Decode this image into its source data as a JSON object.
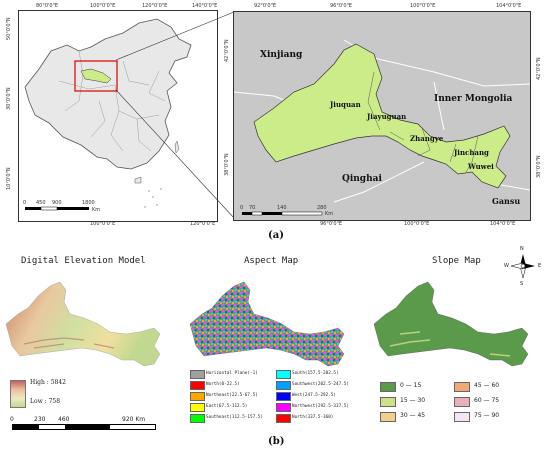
{
  "top_left": {
    "lon_ticks_top": [
      "80°0'0\"E",
      "100°0'0\"E",
      "120°0'0\"E",
      "140°0'0\"E"
    ],
    "lon_ticks_bottom": [
      "100°0'0\"E",
      "120°0'0\"E"
    ],
    "lat_ticks": [
      "50°0'0\"N",
      "30°0'0\"N",
      "10°0'0\"N"
    ],
    "scale": {
      "values": [
        "0",
        "450",
        "900",
        "1800"
      ],
      "unit": "Km"
    }
  },
  "top_right": {
    "lon_ticks_top": [
      "92°0'0\"E",
      "96°0'0\"E",
      "100°0'0\"E",
      "104°0'0\"E"
    ],
    "lon_ticks_bottom": [
      "96°0'0\"E",
      "100°0'0\"E",
      "104°0'0\"E"
    ],
    "lat_ticks_left": [
      "42°0'0\"N",
      "38°0'0\"N"
    ],
    "lat_ticks_right": [
      "42°0'0\"N",
      "38°0'0\"N"
    ],
    "regions": [
      "Xinjiang",
      "Inner Mongolia",
      "Qinghai",
      "Gansu"
    ],
    "cities": [
      "Jiuquan",
      "Jiayuguan",
      "Zhangye",
      "Jinchang",
      "Wuwei"
    ],
    "scale": {
      "values": [
        "0",
        "70",
        "140",
        "280"
      ],
      "unit": "Km"
    }
  },
  "caption_a": "(a)",
  "caption_b": "(b)",
  "dem": {
    "title": "Digital Elevation Model",
    "high_label": "High : 5842",
    "low_label": "Low : 758",
    "scale": {
      "values": [
        "0",
        "230",
        "460",
        "920 Km"
      ]
    }
  },
  "aspect": {
    "title": "Aspect Map",
    "legend": [
      {
        "label": "Horizontal Plane(-1)",
        "color": "#a0a0a0"
      },
      {
        "label": "North(0-22.5)",
        "color": "#ff0000"
      },
      {
        "label": "Northeast(22.5-67.5)",
        "color": "#ffa500"
      },
      {
        "label": "East(67.5-112.5)",
        "color": "#ffff00"
      },
      {
        "label": "Southeast(112.5-157.5)",
        "color": "#00ff00"
      },
      {
        "label": "South(157.5-202.5)",
        "color": "#00ffff"
      },
      {
        "label": "Southwest(202.5-247.5)",
        "color": "#00a0ff"
      },
      {
        "label": "West(247.5-292.5)",
        "color": "#0000ff"
      },
      {
        "label": "Northwest(292.5-337.5)",
        "color": "#ff00ff"
      },
      {
        "label": "North(337.5-360)",
        "color": "#ff0000"
      }
    ]
  },
  "slope": {
    "title": "Slope Map",
    "legend": [
      {
        "label": "0 — 15",
        "color": "#5a9a4a"
      },
      {
        "label": "15 — 30",
        "color": "#cfe08a"
      },
      {
        "label": "30 — 45",
        "color": "#f2d08c"
      },
      {
        "label": "45 — 60",
        "color": "#f0a878"
      },
      {
        "label": "60 — 75",
        "color": "#e8b0b8"
      },
      {
        "label": "75 — 90",
        "color": "#f4e4f4"
      }
    ]
  },
  "compass": {
    "n": "N",
    "s": "S",
    "e": "E",
    "w": "W"
  }
}
